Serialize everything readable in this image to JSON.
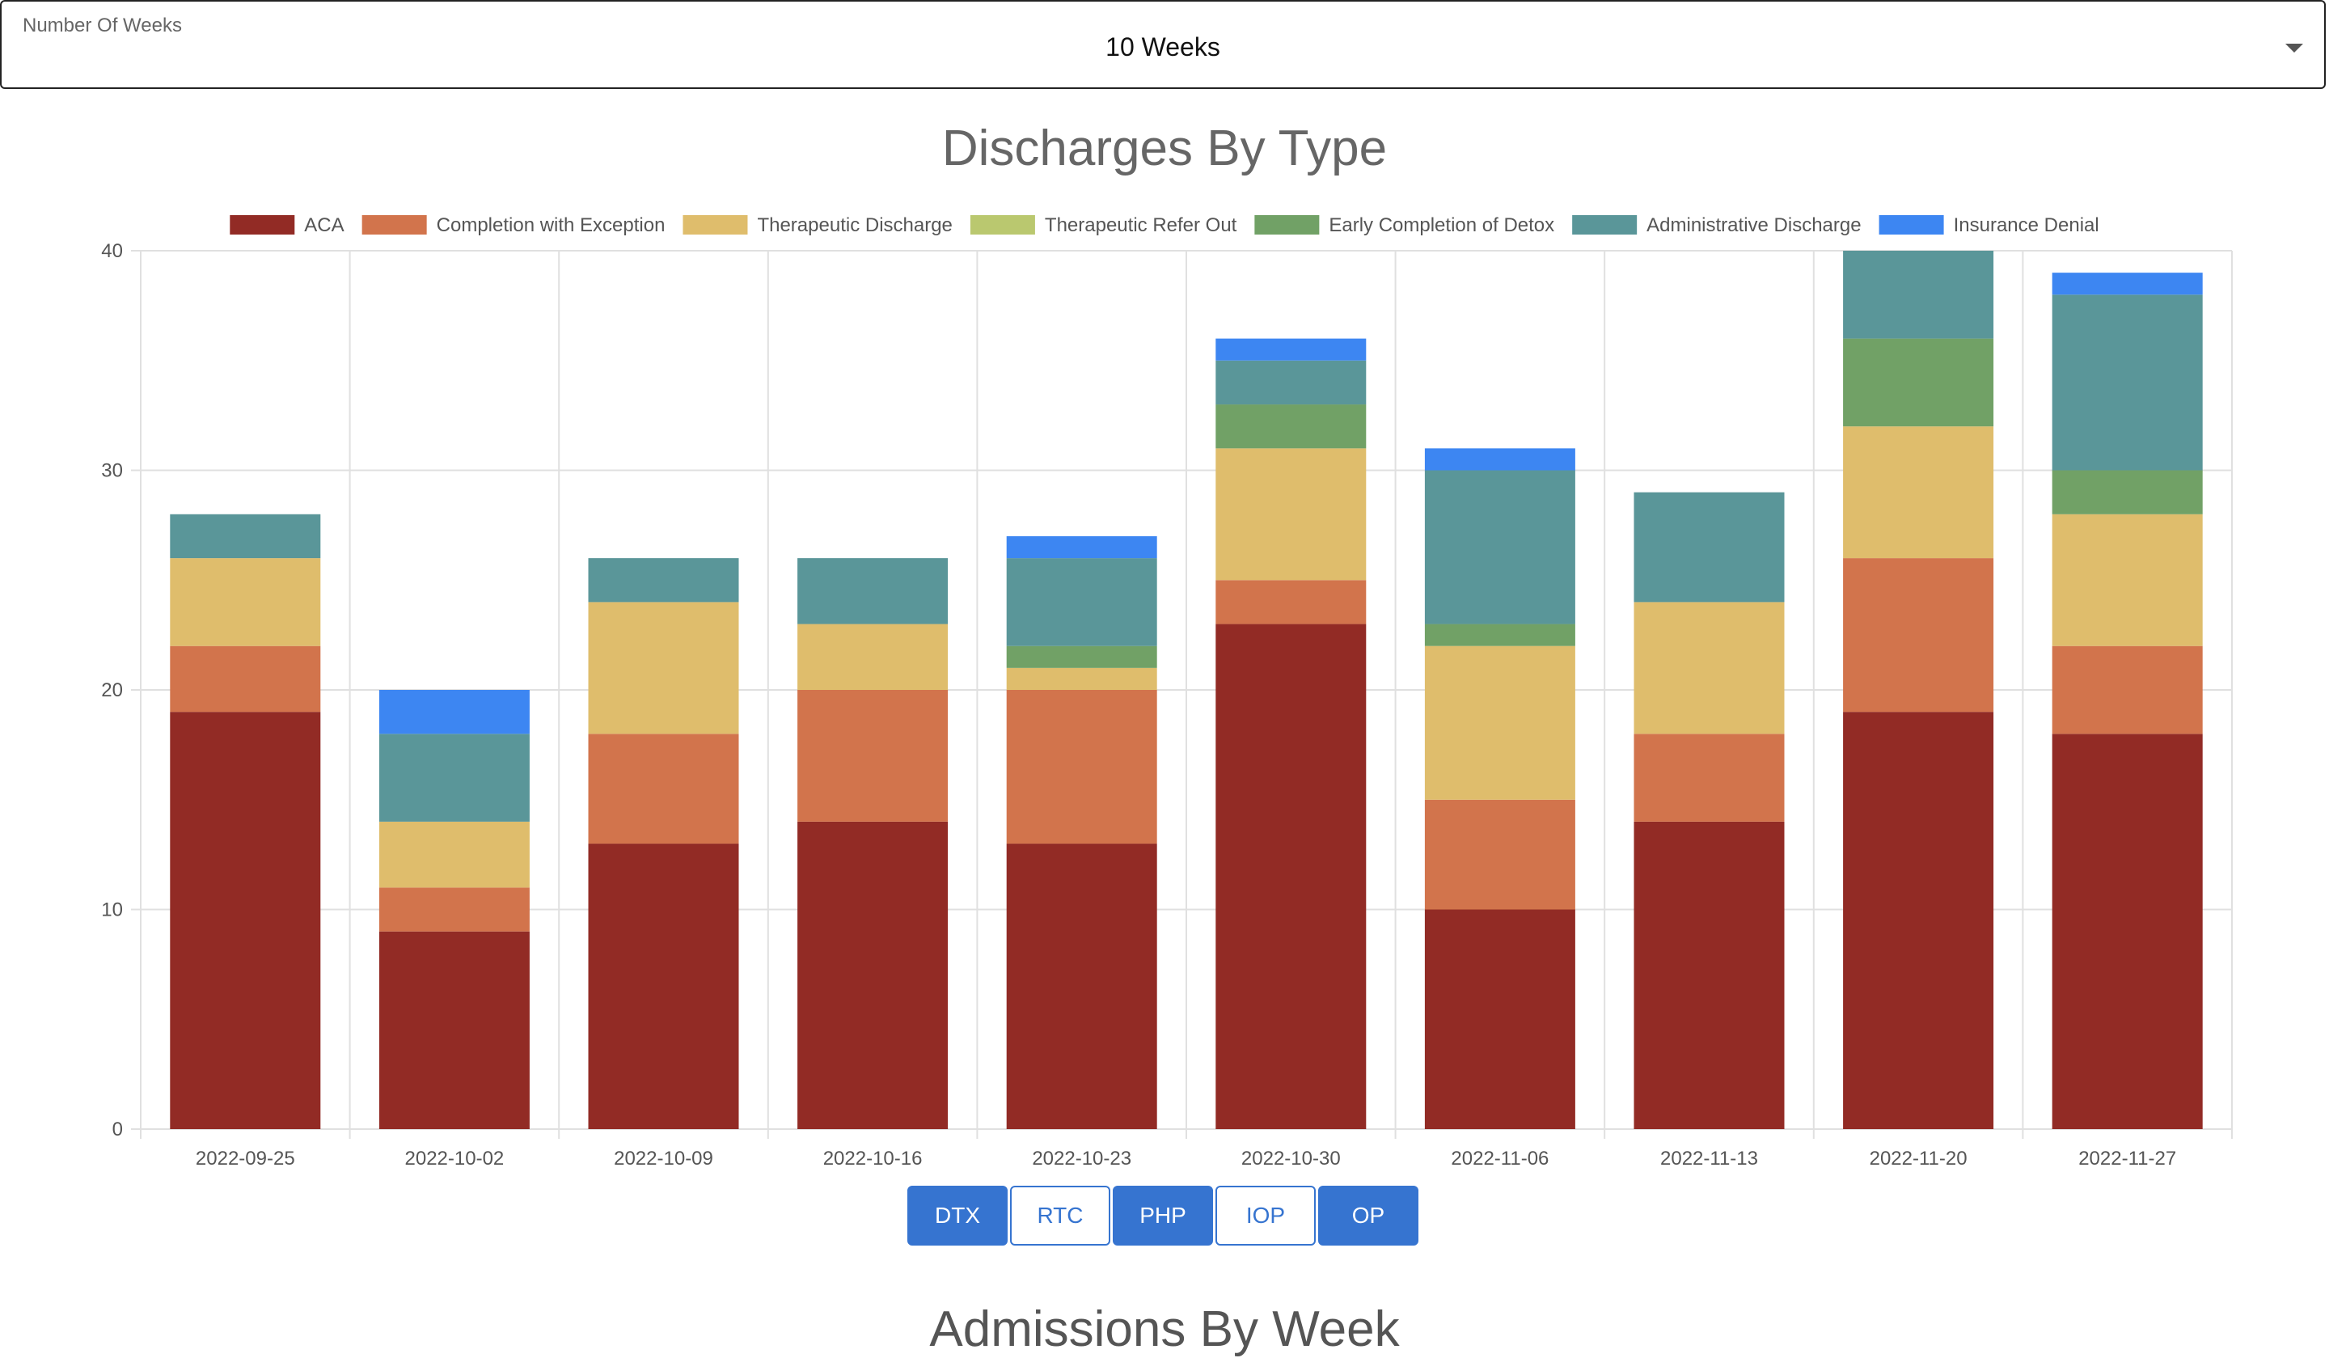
{
  "weeks_select": {
    "label": "Number Of Weeks",
    "value": "10 Weeks"
  },
  "title": "Discharges By Type",
  "buttons": [
    {
      "label": "DTX",
      "active": true
    },
    {
      "label": "RTC",
      "active": false
    },
    {
      "label": "PHP",
      "active": true
    },
    {
      "label": "IOP",
      "active": false
    },
    {
      "label": "OP",
      "active": true
    }
  ],
  "next_section_title": "Admissions By Week",
  "chart_data": {
    "type": "bar",
    "stacked": true,
    "categories": [
      "2022-09-25",
      "2022-10-02",
      "2022-10-09",
      "2022-10-16",
      "2022-10-23",
      "2022-10-30",
      "2022-11-06",
      "2022-11-13",
      "2022-11-20",
      "2022-11-27"
    ],
    "ylim": [
      0,
      40
    ],
    "yticks": [
      0,
      10,
      20,
      30,
      40
    ],
    "grid": true,
    "legend_position": "top",
    "series": [
      {
        "name": "ACA",
        "color": "#922b25",
        "values": [
          19,
          9,
          13,
          14,
          13,
          23,
          10,
          14,
          19,
          18
        ]
      },
      {
        "name": "Completion with Exception",
        "color": "#d2744c",
        "values": [
          3,
          2,
          5,
          6,
          7,
          2,
          5,
          4,
          7,
          4
        ]
      },
      {
        "name": "Therapeutic Discharge",
        "color": "#dfbd6c",
        "values": [
          4,
          3,
          6,
          3,
          1,
          6,
          7,
          6,
          6,
          6
        ]
      },
      {
        "name": "Therapeutic Refer Out",
        "color": "#bac86f",
        "values": [
          0,
          0,
          0,
          0,
          0,
          0,
          0,
          0,
          0,
          0
        ]
      },
      {
        "name": "Early Completion of Detox",
        "color": "#71a166",
        "values": [
          0,
          0,
          0,
          0,
          1,
          2,
          1,
          0,
          4,
          2
        ]
      },
      {
        "name": "Administrative Discharge",
        "color": "#5a9699",
        "values": [
          2,
          4,
          2,
          3,
          4,
          2,
          7,
          5,
          4,
          8
        ]
      },
      {
        "name": "Insurance Denial",
        "color": "#3d86f2",
        "values": [
          0,
          2,
          0,
          0,
          1,
          1,
          1,
          0,
          0,
          1
        ]
      }
    ]
  }
}
